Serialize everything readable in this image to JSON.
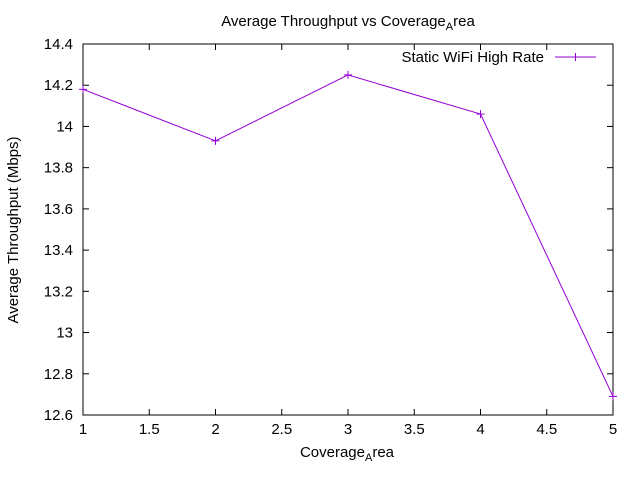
{
  "chart_data": {
    "type": "line",
    "title": {
      "text": "Average Throughput vs Coverage",
      "sub": "A",
      "tail": "rea"
    },
    "xlabel": {
      "text": "Coverage",
      "sub": "A",
      "tail": "rea"
    },
    "ylabel": "Average Throughput (Mbps)",
    "xlim": [
      1,
      5
    ],
    "ylim": [
      12.6,
      14.4
    ],
    "xticks": [
      1,
      1.5,
      2,
      2.5,
      3,
      3.5,
      4,
      4.5,
      5
    ],
    "xtick_labels": [
      "1",
      "1.5",
      "2",
      "2.5",
      "3",
      "3.5",
      "4",
      "4.5",
      "5"
    ],
    "yticks": [
      12.6,
      12.8,
      13,
      13.2,
      13.4,
      13.6,
      13.8,
      14,
      14.2,
      14.4
    ],
    "ytick_labels": [
      "12.6",
      "12.8",
      "13",
      "13.2",
      "13.4",
      "13.6",
      "13.8",
      "14",
      "14.2",
      "14.4"
    ],
    "grid": false,
    "legend_position": "top-right",
    "series": [
      {
        "name": "Static WiFi High Rate",
        "color": "#9400d3",
        "marker": "plus",
        "x": [
          1,
          2,
          3,
          4,
          5
        ],
        "y": [
          14.18,
          13.93,
          14.25,
          14.06,
          12.69
        ]
      }
    ]
  }
}
